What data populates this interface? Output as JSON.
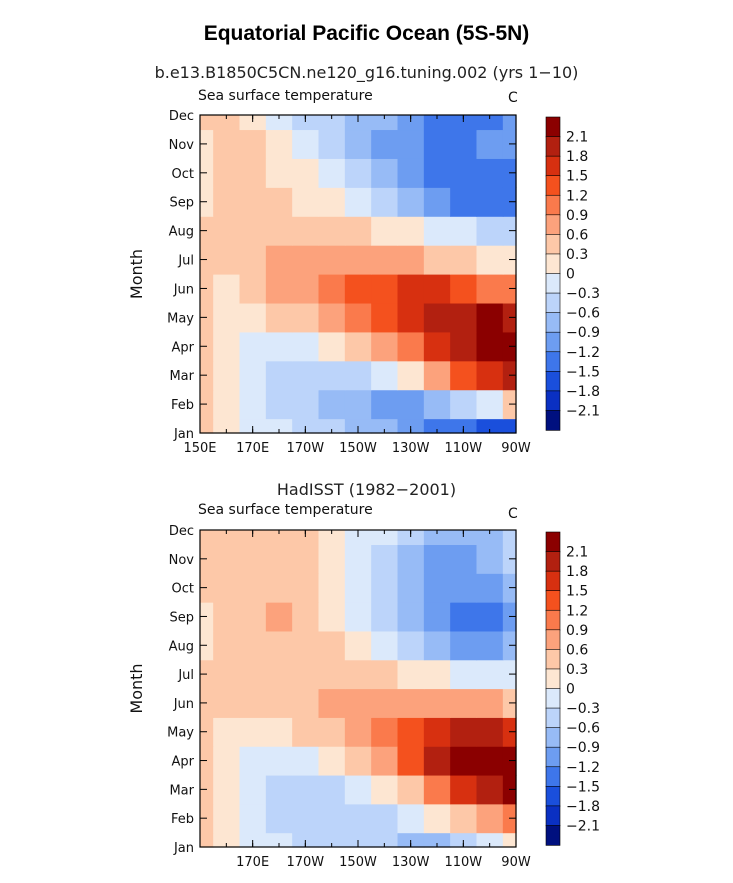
{
  "figure": {
    "title": "Equatorial Pacific Ocean (5S-5N)"
  },
  "colorbar": {
    "labels": [
      "2.1",
      "1.8",
      "1.5",
      "1.2",
      "0.9",
      "0.6",
      "0.3",
      "0",
      "−0.3",
      "−0.6",
      "−0.9",
      "−1.2",
      "−1.5",
      "−1.8",
      "−2.1"
    ],
    "colors_top_to_bottom": [
      "#8b0000",
      "#b22010",
      "#d73010",
      "#f4511e",
      "#fa7a4c",
      "#fca27c",
      "#fdc8a8",
      "#fde6d2",
      "#dbe9fb",
      "#bcd4fa",
      "#97bbf6",
      "#6d9df1",
      "#3e76ea",
      "#1a4fdc",
      "#0a30c2",
      "#00107f"
    ]
  },
  "chart_data": [
    {
      "type": "heatmap",
      "subtitle": "b.e13.B1850C5CN.ne120_g16.tuning.002 (yrs 1−10)",
      "left_label": "Sea surface temperature",
      "right_label": "C",
      "ylabel": "Month",
      "xlabel": "",
      "yticks": [
        "Jan",
        "Feb",
        "Mar",
        "Apr",
        "May",
        "Jun",
        "Jul",
        "Aug",
        "Sep",
        "Oct",
        "Nov",
        "Dec"
      ],
      "xticks": [
        "150E",
        "170E",
        "170W",
        "150W",
        "130W",
        "110W",
        "90W"
      ],
      "units": "C",
      "xlim": [
        150,
        270
      ],
      "x_values": [
        150,
        160,
        170,
        180,
        190,
        200,
        210,
        220,
        230,
        240,
        250,
        260,
        270
      ],
      "rows": [
        [
          0.3,
          0.0,
          -0.3,
          -0.3,
          -0.6,
          -0.6,
          -0.9,
          -0.9,
          -1.2,
          -1.5,
          -1.5,
          -1.8,
          -1.8
        ],
        [
          0.3,
          0.0,
          -0.3,
          -0.6,
          -0.6,
          -0.9,
          -0.9,
          -1.2,
          -1.2,
          -0.9,
          -0.6,
          -0.3,
          0.3
        ],
        [
          0.3,
          0.0,
          -0.3,
          -0.6,
          -0.6,
          -0.6,
          -0.6,
          -0.3,
          0.0,
          0.6,
          1.2,
          1.5,
          1.8
        ],
        [
          0.3,
          0.0,
          -0.3,
          -0.3,
          -0.3,
          0.0,
          0.3,
          0.6,
          0.9,
          1.5,
          1.8,
          2.1,
          2.1
        ],
        [
          0.3,
          0.0,
          0.0,
          0.3,
          0.3,
          0.6,
          0.9,
          1.2,
          1.5,
          1.8,
          1.8,
          2.1,
          1.8
        ],
        [
          0.3,
          0.0,
          0.3,
          0.6,
          0.6,
          0.9,
          1.2,
          1.2,
          1.5,
          1.5,
          1.2,
          0.9,
          0.9
        ],
        [
          0.3,
          0.3,
          0.3,
          0.6,
          0.6,
          0.6,
          0.6,
          0.6,
          0.6,
          0.3,
          0.3,
          0.0,
          0.0
        ],
        [
          0.3,
          0.3,
          0.3,
          0.3,
          0.3,
          0.3,
          0.3,
          0.0,
          0.0,
          -0.3,
          -0.3,
          -0.6,
          -0.6
        ],
        [
          0.0,
          0.3,
          0.3,
          0.3,
          0.0,
          0.0,
          -0.3,
          -0.6,
          -0.9,
          -1.2,
          -1.5,
          -1.5,
          -1.5
        ],
        [
          0.0,
          0.3,
          0.3,
          0.0,
          0.0,
          -0.3,
          -0.6,
          -0.9,
          -1.2,
          -1.5,
          -1.5,
          -1.5,
          -1.5
        ],
        [
          0.0,
          0.3,
          0.3,
          0.0,
          -0.3,
          -0.6,
          -0.9,
          -1.2,
          -1.2,
          -1.5,
          -1.5,
          -1.2,
          -1.2
        ],
        [
          0.3,
          0.3,
          0.0,
          -0.3,
          -0.6,
          -0.6,
          -0.9,
          -0.9,
          -1.2,
          -1.5,
          -1.5,
          -1.5,
          -1.2
        ]
      ]
    },
    {
      "type": "heatmap",
      "subtitle": "HadISST (1982−2001)",
      "left_label": "Sea surface temperature",
      "right_label": "C",
      "ylabel": "Month",
      "xlabel": "",
      "yticks": [
        "Jan",
        "Feb",
        "Mar",
        "Apr",
        "May",
        "Jun",
        "Jul",
        "Aug",
        "Sep",
        "Oct",
        "Nov",
        "Dec"
      ],
      "xticks": [
        "170E",
        "170W",
        "150W",
        "130W",
        "110W",
        "90W"
      ],
      "units": "C",
      "xlim": [
        150,
        270
      ],
      "x_values": [
        150,
        160,
        170,
        180,
        190,
        200,
        210,
        220,
        230,
        240,
        250,
        260,
        270
      ],
      "rows": [
        [
          0.3,
          0.0,
          -0.3,
          -0.3,
          -0.6,
          -0.6,
          -0.6,
          -0.6,
          -0.9,
          -0.9,
          -0.6,
          -0.3,
          0.0
        ],
        [
          0.3,
          0.0,
          -0.3,
          -0.6,
          -0.6,
          -0.6,
          -0.6,
          -0.6,
          -0.3,
          0.0,
          0.3,
          0.6,
          0.9
        ],
        [
          0.3,
          0.0,
          -0.3,
          -0.6,
          -0.6,
          -0.6,
          -0.3,
          0.0,
          0.3,
          0.9,
          1.5,
          1.8,
          2.1
        ],
        [
          0.3,
          0.0,
          -0.3,
          -0.3,
          -0.3,
          0.0,
          0.3,
          0.6,
          1.2,
          1.8,
          2.1,
          2.1,
          2.1
        ],
        [
          0.3,
          0.0,
          0.0,
          0.0,
          0.3,
          0.3,
          0.6,
          0.9,
          1.2,
          1.5,
          1.8,
          1.8,
          1.5
        ],
        [
          0.3,
          0.3,
          0.3,
          0.3,
          0.3,
          0.6,
          0.6,
          0.6,
          0.6,
          0.6,
          0.6,
          0.6,
          0.3
        ],
        [
          0.3,
          0.3,
          0.3,
          0.3,
          0.3,
          0.3,
          0.3,
          0.3,
          0.0,
          0.0,
          -0.3,
          -0.3,
          -0.3
        ],
        [
          0.0,
          0.3,
          0.3,
          0.3,
          0.3,
          0.3,
          0.0,
          -0.3,
          -0.6,
          -0.9,
          -1.2,
          -1.2,
          -0.9
        ],
        [
          0.0,
          0.3,
          0.3,
          0.6,
          0.3,
          0.0,
          -0.3,
          -0.6,
          -0.9,
          -1.2,
          -1.5,
          -1.5,
          -1.2
        ],
        [
          0.3,
          0.3,
          0.3,
          0.3,
          0.3,
          0.0,
          -0.3,
          -0.6,
          -0.9,
          -1.2,
          -1.2,
          -1.2,
          -0.9
        ],
        [
          0.3,
          0.3,
          0.3,
          0.3,
          0.3,
          0.0,
          -0.3,
          -0.6,
          -0.9,
          -1.2,
          -1.2,
          -0.9,
          -0.6
        ],
        [
          0.3,
          0.3,
          0.3,
          0.3,
          0.3,
          0.0,
          -0.3,
          -0.3,
          -0.6,
          -0.9,
          -0.9,
          -0.9,
          -0.6
        ]
      ]
    }
  ]
}
